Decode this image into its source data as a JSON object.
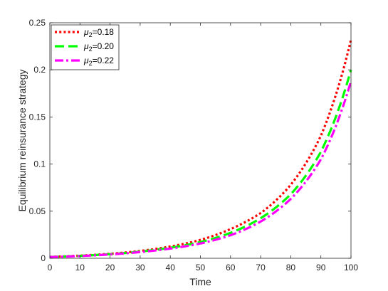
{
  "chart_data": {
    "type": "line",
    "xlabel": "Time",
    "ylabel": "Equilibrium reinsurance strategy",
    "xlim": [
      0,
      100
    ],
    "ylim": [
      0,
      0.25
    ],
    "x_ticks": [
      0,
      10,
      20,
      30,
      40,
      50,
      60,
      70,
      80,
      90,
      100
    ],
    "y_ticks": [
      0,
      0.05,
      0.1,
      0.15,
      0.2,
      0.25
    ],
    "x_tick_labels": [
      "0",
      "10",
      "20",
      "30",
      "40",
      "50",
      "60",
      "70",
      "80",
      "90",
      "100"
    ],
    "y_tick_labels": [
      "0",
      "0.05",
      "0.1",
      "0.15",
      "0.2",
      "0.25"
    ],
    "grid": false,
    "legend_position": "top-left",
    "x": [
      0,
      10,
      20,
      30,
      40,
      50,
      60,
      70,
      80,
      90,
      100
    ],
    "series": [
      {
        "name": "μ2=0.18",
        "legend_symbol": "μ",
        "legend_subscript": "2",
        "legend_value": "=0.18",
        "color": "#ff0000",
        "line_style": "dotted",
        "values": [
          0.0015,
          0.0028,
          0.0048,
          0.0078,
          0.0125,
          0.0195,
          0.031,
          0.048,
          0.078,
          0.13,
          0.232
        ]
      },
      {
        "name": "μ2=0.20",
        "legend_symbol": "μ",
        "legend_subscript": "2",
        "legend_value": "=0.20",
        "color": "#00ff00",
        "line_style": "dashed",
        "values": [
          0.0014,
          0.0026,
          0.0044,
          0.0071,
          0.0112,
          0.0172,
          0.027,
          0.0425,
          0.068,
          0.113,
          0.2
        ]
      },
      {
        "name": "μ2=0.22",
        "legend_symbol": "μ",
        "legend_subscript": "2",
        "legend_value": "=0.22",
        "color": "#ff00ff",
        "line_style": "dash-dot",
        "values": [
          0.0013,
          0.0024,
          0.0041,
          0.0066,
          0.0103,
          0.0157,
          0.0245,
          0.039,
          0.063,
          0.105,
          0.188
        ]
      }
    ]
  }
}
